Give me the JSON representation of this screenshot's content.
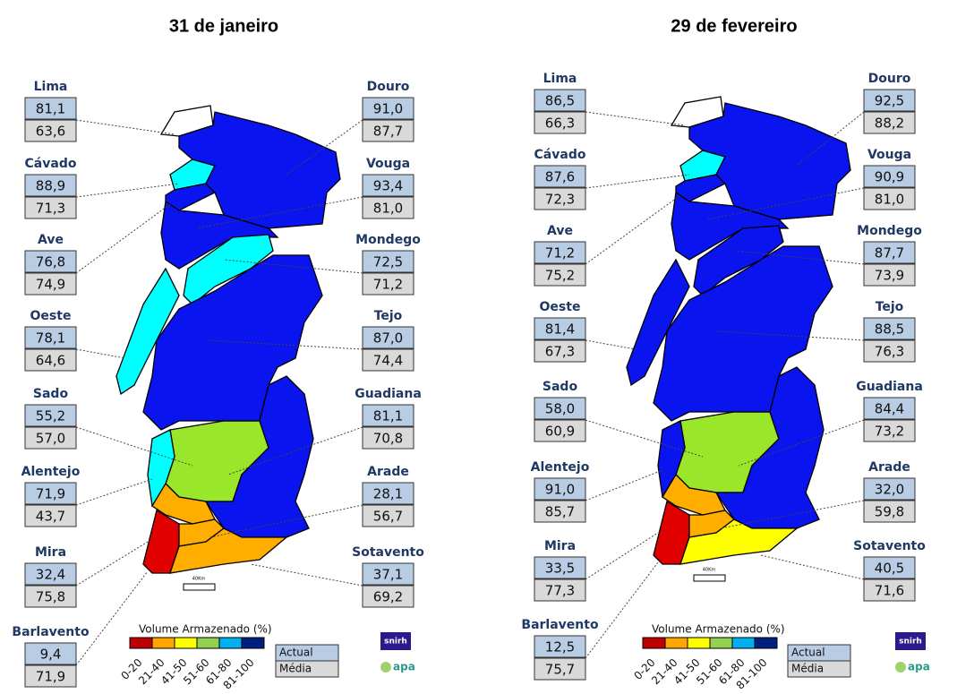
{
  "panels": [
    {
      "title": "31 de janeiro",
      "basins": [
        {
          "name": "Lima",
          "actual": "81,1",
          "media": "63,6",
          "color": "#ffffff"
        },
        {
          "name": "Cávado",
          "actual": "88,9",
          "media": "71,3",
          "color": "#00ffff"
        },
        {
          "name": "Ave",
          "actual": "76,8",
          "media": "74,9",
          "color": "#0a14ee"
        },
        {
          "name": "Oeste",
          "actual": "78,1",
          "media": "64,6",
          "color": "#00ffff"
        },
        {
          "name": "Sado",
          "actual": "55,2",
          "media": "57,0",
          "color": "#99e62a"
        },
        {
          "name": "Alentejo",
          "actual": "71,9",
          "media": "43,7",
          "color": "#00ffff"
        },
        {
          "name": "Mira",
          "actual": "32,4",
          "media": "75,8",
          "color": "#ffae00"
        },
        {
          "name": "Barlavento",
          "actual": "9,4",
          "media": "71,9",
          "color": "#e00000"
        },
        {
          "name": "Douro",
          "actual": "91,0",
          "media": "87,7",
          "color": "#0a14ee"
        },
        {
          "name": "Vouga",
          "actual": "93,4",
          "media": "81,0",
          "color": "#0a14ee"
        },
        {
          "name": "Mondego",
          "actual": "72,5",
          "media": "71,2",
          "color": "#00ffff"
        },
        {
          "name": "Tejo",
          "actual": "87,0",
          "media": "74,4",
          "color": "#0a14ee"
        },
        {
          "name": "Guadiana",
          "actual": "81,1",
          "media": "70,8",
          "color": "#0a14ee"
        },
        {
          "name": "Arade",
          "actual": "28,1",
          "media": "56,7",
          "color": "#ffae00"
        },
        {
          "name": "Sotavento",
          "actual": "37,1",
          "media": "69,2",
          "color": "#ffae00"
        }
      ]
    },
    {
      "title": "29 de fevereiro",
      "basins": [
        {
          "name": "Lima",
          "actual": "86,5",
          "media": "66,3",
          "color": "#ffffff"
        },
        {
          "name": "Cávado",
          "actual": "87,6",
          "media": "72,3",
          "color": "#00ffff"
        },
        {
          "name": "Ave",
          "actual": "71,2",
          "media": "75,2",
          "color": "#0a14ee"
        },
        {
          "name": "Oeste",
          "actual": "81,4",
          "media": "67,3",
          "color": "#0a14ee"
        },
        {
          "name": "Sado",
          "actual": "58,0",
          "media": "60,9",
          "color": "#99e62a"
        },
        {
          "name": "Alentejo",
          "actual": "91,0",
          "media": "85,7",
          "color": "#0a14ee"
        },
        {
          "name": "Mira",
          "actual": "33,5",
          "media": "77,3",
          "color": "#ffae00"
        },
        {
          "name": "Barlavento",
          "actual": "12,5",
          "media": "75,7",
          "color": "#e00000"
        },
        {
          "name": "Douro",
          "actual": "92,5",
          "media": "88,2",
          "color": "#0a14ee"
        },
        {
          "name": "Vouga",
          "actual": "90,9",
          "media": "81,0",
          "color": "#0a14ee"
        },
        {
          "name": "Mondego",
          "actual": "87,7",
          "media": "73,9",
          "color": "#0a14ee"
        },
        {
          "name": "Tejo",
          "actual": "88,5",
          "media": "76,3",
          "color": "#0a14ee"
        },
        {
          "name": "Guadiana",
          "actual": "84,4",
          "media": "73,2",
          "color": "#0a14ee"
        },
        {
          "name": "Arade",
          "actual": "32,0",
          "media": "59,8",
          "color": "#ffae00"
        },
        {
          "name": "Sotavento",
          "actual": "40,5",
          "media": "71,6",
          "color": "#ffff00"
        }
      ]
    }
  ],
  "legend": {
    "title": "Volume Armazenado (%)",
    "classes": [
      {
        "label": "0-20",
        "color": "#c00000"
      },
      {
        "label": "21-40",
        "color": "#ffa500"
      },
      {
        "label": "41-50",
        "color": "#ffff00"
      },
      {
        "label": "51-60",
        "color": "#92d050"
      },
      {
        "label": "61-80",
        "color": "#00b0f0"
      },
      {
        "label": "81-100",
        "color": "#002080"
      }
    ],
    "actual": "Actual",
    "media": "Média"
  },
  "logos": [
    "snirh",
    "apa"
  ],
  "scale_label": "40Km"
}
